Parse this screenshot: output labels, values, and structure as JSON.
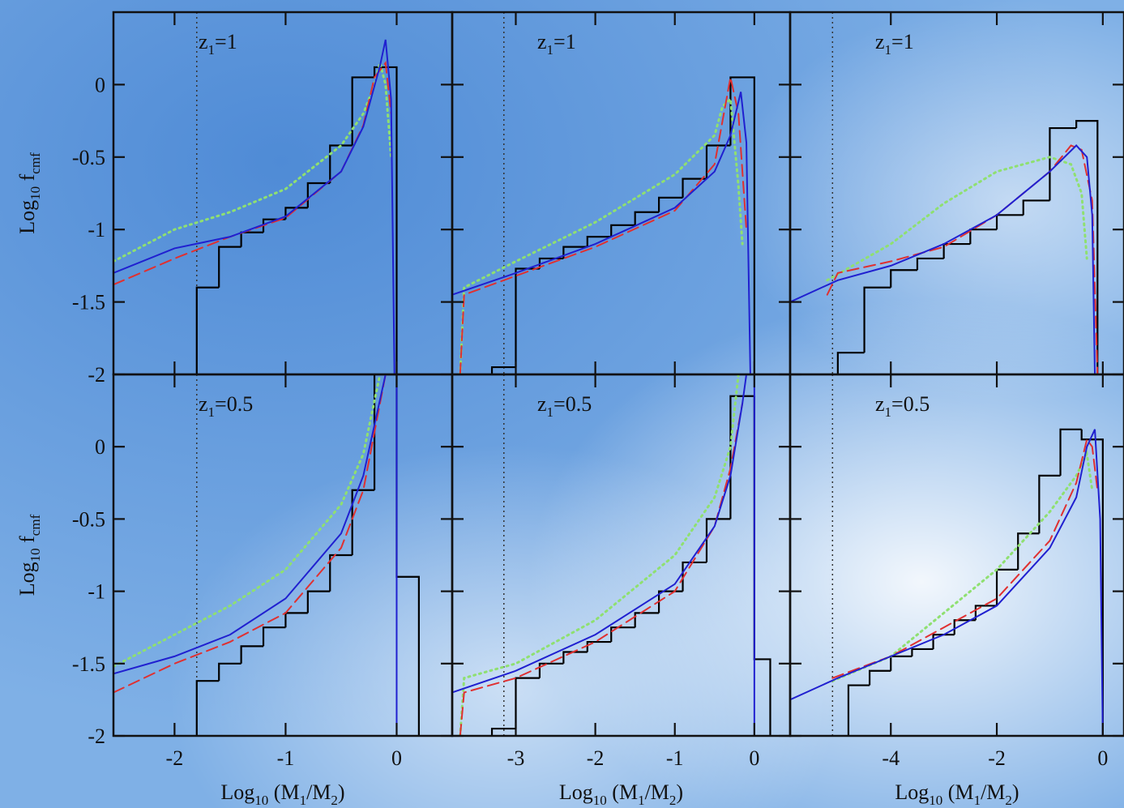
{
  "chart_data": [
    {
      "type": "line",
      "label": [
        "z",
        "1",
        "=1"
      ],
      "y_label": [
        "Log",
        "10",
        " f",
        "cmf"
      ],
      "xlim": [
        -2.55,
        0.5
      ],
      "ylim": [
        -2,
        0.5
      ],
      "xticks": [
        -2,
        -1,
        0
      ],
      "yticks": [
        -2,
        -1.5,
        -1,
        -0.5,
        0
      ],
      "xtick_labels": false,
      "ytick_labels": true,
      "vline": -1.8,
      "series": [
        {
          "style": "step",
          "color": "#000000",
          "bins": [
            -1.8,
            -1.6,
            -1.4,
            -1.2,
            -1.0,
            -0.8,
            -0.6,
            -0.4,
            -0.2,
            0
          ],
          "values": [
            -1.4,
            -1.12,
            -1.02,
            -0.93,
            -0.85,
            -0.68,
            -0.42,
            0.05,
            0.12
          ]
        },
        {
          "style": "dotted",
          "color": "#8fe070",
          "x": [
            -2.55,
            -2,
            -1.5,
            -1,
            -0.5,
            -0.3,
            -0.2,
            -0.15,
            -0.1,
            -0.05
          ],
          "values": [
            -1.22,
            -1.0,
            -0.88,
            -0.72,
            -0.42,
            -0.2,
            0.0,
            0.15,
            0.0,
            -0.5
          ]
        },
        {
          "style": "dashed",
          "color": "#e03030",
          "x": [
            -2.55,
            -2,
            -1.5,
            -1,
            -0.5,
            -0.3,
            -0.2,
            -0.1,
            -0.05
          ],
          "values": [
            -1.38,
            -1.2,
            -1.05,
            -0.92,
            -0.6,
            -0.28,
            0.05,
            0.15,
            -0.2
          ]
        },
        {
          "style": "solid",
          "color": "#2020d0",
          "x": [
            -2.55,
            -2,
            -1.5,
            -1,
            -0.5,
            -0.3,
            -0.15,
            -0.1,
            -0.05,
            -0.02
          ],
          "values": [
            -1.3,
            -1.13,
            -1.05,
            -0.91,
            -0.6,
            -0.29,
            0.13,
            0.31,
            -0.1,
            -2
          ]
        }
      ]
    },
    {
      "type": "line",
      "label": [
        "z",
        "1",
        "=1"
      ],
      "xlim": [
        -3.8,
        0.45
      ],
      "ylim": [
        -2,
        0.5
      ],
      "xticks": [
        -3,
        -2,
        -1,
        0
      ],
      "yticks": [
        -2,
        -1.5,
        -1,
        -0.5,
        0
      ],
      "xtick_labels": false,
      "ytick_labels": false,
      "vline": -3.15,
      "series": [
        {
          "style": "step",
          "color": "#000000",
          "bins": [
            -3.3,
            -3.0,
            -2.7,
            -2.4,
            -2.1,
            -1.8,
            -1.5,
            -1.2,
            -0.9,
            -0.6,
            -0.3,
            0
          ],
          "values": [
            -1.95,
            -1.27,
            -1.2,
            -1.12,
            -1.05,
            -0.97,
            -0.88,
            -0.78,
            -0.65,
            -0.42,
            0.05
          ]
        },
        {
          "style": "dotted",
          "color": "#8fe070",
          "x": [
            -3.7,
            -3.65,
            -3,
            -2,
            -1,
            -0.5,
            -0.4,
            -0.3,
            -0.2,
            -0.15
          ],
          "values": [
            -2,
            -1.4,
            -1.22,
            -0.95,
            -0.62,
            -0.35,
            -0.15,
            -0.1,
            -0.7,
            -1.1
          ]
        },
        {
          "style": "dashed",
          "color": "#e03030",
          "x": [
            -3.7,
            -3.65,
            -3,
            -2,
            -1,
            -0.5,
            -0.35,
            -0.3,
            -0.2,
            -0.1
          ],
          "values": [
            -2,
            -1.45,
            -1.32,
            -1.12,
            -0.87,
            -0.55,
            -0.1,
            0.05,
            -0.2,
            -1.0
          ]
        },
        {
          "style": "solid",
          "color": "#2020d0",
          "x": [
            -3.8,
            -3,
            -2,
            -1,
            -0.5,
            -0.3,
            -0.17,
            -0.1,
            -0.05
          ],
          "values": [
            -1.45,
            -1.3,
            -1.1,
            -0.85,
            -0.6,
            -0.35,
            -0.05,
            -0.4,
            -2
          ]
        }
      ]
    },
    {
      "type": "line",
      "label": [
        "z",
        "1",
        "=1"
      ],
      "xlim": [
        -5.9,
        0.4
      ],
      "ylim": [
        -2,
        0.5
      ],
      "xticks": [
        -4,
        -2,
        0
      ],
      "yticks": [
        -2,
        -1.5,
        -1,
        -0.5,
        0
      ],
      "xtick_labels": false,
      "ytick_labels": false,
      "vline": -5.1,
      "series": [
        {
          "style": "step",
          "color": "#000000",
          "bins": [
            -5,
            -4.5,
            -4,
            -3.5,
            -3,
            -2.5,
            -2,
            -1.5,
            -1,
            -0.5,
            -0.1
          ],
          "values": [
            -1.85,
            -1.4,
            -1.28,
            -1.2,
            -1.1,
            -1.0,
            -0.9,
            -0.8,
            -0.3,
            -0.25
          ]
        },
        {
          "style": "dotted",
          "color": "#8fe070",
          "x": [
            -5.2,
            -4,
            -3,
            -2,
            -1,
            -0.6,
            -0.4,
            -0.3
          ],
          "values": [
            -1.35,
            -1.1,
            -0.82,
            -0.6,
            -0.5,
            -0.55,
            -0.75,
            -1.2
          ]
        },
        {
          "style": "dashed",
          "color": "#e03030",
          "x": [
            -5.2,
            -5,
            -4,
            -3,
            -2,
            -1,
            -0.6,
            -0.4,
            -0.2,
            -0.1
          ],
          "values": [
            -1.45,
            -1.3,
            -1.22,
            -1.12,
            -0.9,
            -0.6,
            -0.42,
            -0.45,
            -0.8,
            -2
          ]
        },
        {
          "style": "solid",
          "color": "#2020d0",
          "x": [
            -5.9,
            -5,
            -4,
            -3,
            -2,
            -1,
            -0.5,
            -0.3,
            -0.2,
            -0.15
          ],
          "values": [
            -1.5,
            -1.35,
            -1.25,
            -1.1,
            -0.9,
            -0.6,
            -0.42,
            -0.5,
            -0.9,
            -2
          ]
        }
      ]
    },
    {
      "type": "line",
      "label": [
        "z",
        "1",
        "=0.5"
      ],
      "y_label": [
        "Log",
        "10",
        " f",
        "cmf"
      ],
      "x_label": [
        "Log",
        "10",
        " (M",
        "1",
        "/M",
        "2",
        ")"
      ],
      "xlim": [
        -2.55,
        0.5
      ],
      "ylim": [
        -2,
        0.5
      ],
      "xticks": [
        -2,
        -1,
        0
      ],
      "yticks": [
        -2,
        -1.5,
        -1,
        -0.5,
        0
      ],
      "xtick_labels": true,
      "ytick_labels": true,
      "vline": -1.8,
      "series": [
        {
          "style": "step",
          "color": "#000000",
          "bins": [
            -1.8,
            -1.6,
            -1.4,
            -1.2,
            -1.0,
            -0.8,
            -0.6,
            -0.4,
            -0.2,
            0,
            0.2
          ],
          "values": [
            -1.62,
            -1.5,
            -1.38,
            -1.25,
            -1.15,
            -1.0,
            -0.75,
            -0.3,
            0.5,
            -0.9
          ]
        },
        {
          "style": "dotted",
          "color": "#8fe070",
          "x": [
            -2.55,
            -2,
            -1.5,
            -1,
            -0.5,
            -0.3,
            -0.15
          ],
          "values": [
            -1.52,
            -1.3,
            -1.1,
            -0.85,
            -0.4,
            -0.05,
            0.5
          ]
        },
        {
          "style": "dashed",
          "color": "#e03030",
          "x": [
            -2.55,
            -2,
            -1.5,
            -1,
            -0.5,
            -0.3,
            -0.2,
            -0.1
          ],
          "values": [
            -1.7,
            -1.5,
            -1.35,
            -1.15,
            -0.7,
            -0.3,
            0.1,
            0.5
          ]
        },
        {
          "style": "solid",
          "color": "#2020d0",
          "x": [
            -2.55,
            -2,
            -1.5,
            -1,
            -0.5,
            -0.3,
            -0.2,
            -0.1,
            0,
            0
          ],
          "values": [
            -1.57,
            -1.45,
            -1.3,
            -1.05,
            -0.6,
            -0.2,
            0.15,
            0.5,
            0.5,
            -2
          ]
        }
      ]
    },
    {
      "type": "line",
      "label": [
        "z",
        "1",
        "=0.5"
      ],
      "x_label": [
        "Log",
        "10",
        " (M",
        "1",
        "/M",
        "2",
        ")"
      ],
      "xlim": [
        -3.8,
        0.45
      ],
      "ylim": [
        -2,
        0.5
      ],
      "xticks": [
        -3,
        -2,
        -1,
        0
      ],
      "yticks": [
        -2,
        -1.5,
        -1,
        -0.5,
        0
      ],
      "xtick_labels": true,
      "ytick_labels": false,
      "vline": -3.15,
      "series": [
        {
          "style": "step",
          "color": "#000000",
          "bins": [
            -3.3,
            -3.0,
            -2.7,
            -2.4,
            -2.1,
            -1.8,
            -1.5,
            -1.2,
            -0.9,
            -0.6,
            -0.3,
            0,
            0.2
          ],
          "values": [
            -1.95,
            -1.6,
            -1.5,
            -1.42,
            -1.35,
            -1.25,
            -1.15,
            -1.0,
            -0.8,
            -0.5,
            0.35,
            -1.47
          ]
        },
        {
          "style": "dotted",
          "color": "#8fe070",
          "x": [
            -3.7,
            -3.65,
            -3,
            -2,
            -1,
            -0.5,
            -0.3,
            -0.2
          ],
          "values": [
            -2,
            -1.6,
            -1.5,
            -1.2,
            -0.75,
            -0.35,
            0.0,
            0.5
          ]
        },
        {
          "style": "dashed",
          "color": "#e03030",
          "x": [
            -3.7,
            -3.65,
            -3,
            -2,
            -1,
            -0.5,
            -0.3,
            -0.15
          ],
          "values": [
            -2,
            -1.7,
            -1.6,
            -1.35,
            -1.0,
            -0.55,
            -0.15,
            0.3
          ]
        },
        {
          "style": "solid",
          "color": "#2020d0",
          "x": [
            -3.8,
            -3,
            -2,
            -1,
            -0.5,
            -0.3,
            -0.15,
            -0.1,
            0,
            0
          ],
          "values": [
            -1.7,
            -1.55,
            -1.3,
            -0.95,
            -0.55,
            -0.2,
            0.3,
            0.5,
            0.5,
            -2
          ]
        }
      ]
    },
    {
      "type": "line",
      "label": [
        "z",
        "1",
        "=0.5"
      ],
      "x_label": [
        "Log",
        "10",
        " (M",
        "1",
        "/M",
        "2",
        ")"
      ],
      "xlim": [
        -5.9,
        0.4
      ],
      "ylim": [
        -2,
        0.5
      ],
      "xticks": [
        -4,
        -2,
        0
      ],
      "yticks": [
        -2,
        -1.5,
        -1,
        -0.5,
        0
      ],
      "xtick_labels": true,
      "ytick_labels": false,
      "vline": -5.1,
      "series": [
        {
          "style": "step",
          "color": "#000000",
          "bins": [
            -4.8,
            -4.4,
            -4.0,
            -3.6,
            -3.2,
            -2.8,
            -2.4,
            -2.0,
            -1.6,
            -1.2,
            -0.8,
            -0.4,
            0
          ],
          "values": [
            -1.65,
            -1.55,
            -1.45,
            -1.4,
            -1.3,
            -1.2,
            -1.1,
            -0.85,
            -0.6,
            -0.2,
            0.12,
            0.05
          ]
        },
        {
          "style": "dotted",
          "color": "#8fe070",
          "x": [
            -5.1,
            -4,
            -3,
            -2,
            -1,
            -0.5,
            -0.3,
            -0.2
          ],
          "values": [
            -1.62,
            -1.45,
            -1.15,
            -0.85,
            -0.45,
            -0.2,
            -0.05,
            -0.3
          ]
        },
        {
          "style": "dashed",
          "color": "#e03030",
          "x": [
            -5.1,
            -4,
            -3,
            -2,
            -1,
            -0.5,
            -0.3,
            -0.2,
            -0.1
          ],
          "values": [
            -1.6,
            -1.45,
            -1.25,
            -1.05,
            -0.65,
            -0.25,
            0.05,
            0.0,
            -0.3
          ]
        },
        {
          "style": "solid",
          "color": "#2020d0",
          "x": [
            -5.9,
            -5,
            -4,
            -3,
            -2,
            -1,
            -0.5,
            -0.3,
            -0.15,
            -0.05,
            0
          ],
          "values": [
            -1.75,
            -1.6,
            -1.45,
            -1.3,
            -1.1,
            -0.7,
            -0.35,
            0.0,
            0.12,
            -0.5,
            -2
          ]
        }
      ]
    }
  ]
}
